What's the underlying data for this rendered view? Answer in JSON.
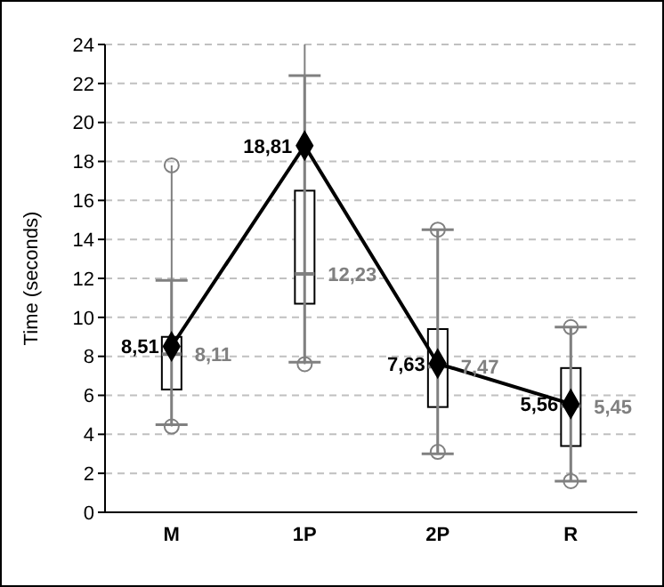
{
  "chart_data": {
    "type": "box",
    "ylabel": "Time (seconds)",
    "categories": [
      "M",
      "1P",
      "2P",
      "R"
    ],
    "ylim": [
      0,
      24
    ],
    "yticks": [
      0,
      2,
      4,
      6,
      8,
      10,
      12,
      14,
      16,
      18,
      20,
      22,
      24
    ],
    "grid": "y",
    "legend": false,
    "series": [
      {
        "color": "#ffffff",
        "boxes": [
          {
            "low": 4.4,
            "q1": 6.3,
            "median": 8.11,
            "q3": 9.0,
            "high": 17.8,
            "outliers": [
              17.8,
              4.4
            ]
          },
          {
            "low": 7.6,
            "q1": 10.7,
            "median": 12.23,
            "q3": 16.5,
            "high": 24,
            "outliers": [
              7.6
            ]
          },
          {
            "low": 3.1,
            "q1": 5.4,
            "median": 7.47,
            "q3": 9.4,
            "high": 14.5,
            "outliers": [
              14.5,
              3.1
            ]
          },
          {
            "low": 1.6,
            "q1": 3.4,
            "median": 5.45,
            "q3": 7.4,
            "high": 9.5,
            "outliers": [
              9.5,
              1.6
            ]
          }
        ]
      },
      {
        "type": "line",
        "color": "#000000",
        "marker": "diamond",
        "line_style": "solid",
        "values": [
          8.51,
          18.81,
          7.63,
          5.56
        ],
        "value_labels": [
          "8,51",
          "18,81",
          "7,63",
          "5,56"
        ],
        "errors": [
          [
            4.5,
            11.9
          ],
          [
            7.7,
            22.4
          ],
          [
            3.0,
            14.5
          ],
          [
            1.6,
            9.5
          ]
        ]
      }
    ],
    "annotations": [
      {
        "text": "8,11",
        "x": "M",
        "y": 8.11
      },
      {
        "text": "12,23",
        "x": "1P",
        "y": 12.23
      },
      {
        "text": "7,47",
        "x": "2P",
        "y": 7.47
      },
      {
        "text": "5,45",
        "x": "R",
        "y": 5.45
      }
    ]
  }
}
